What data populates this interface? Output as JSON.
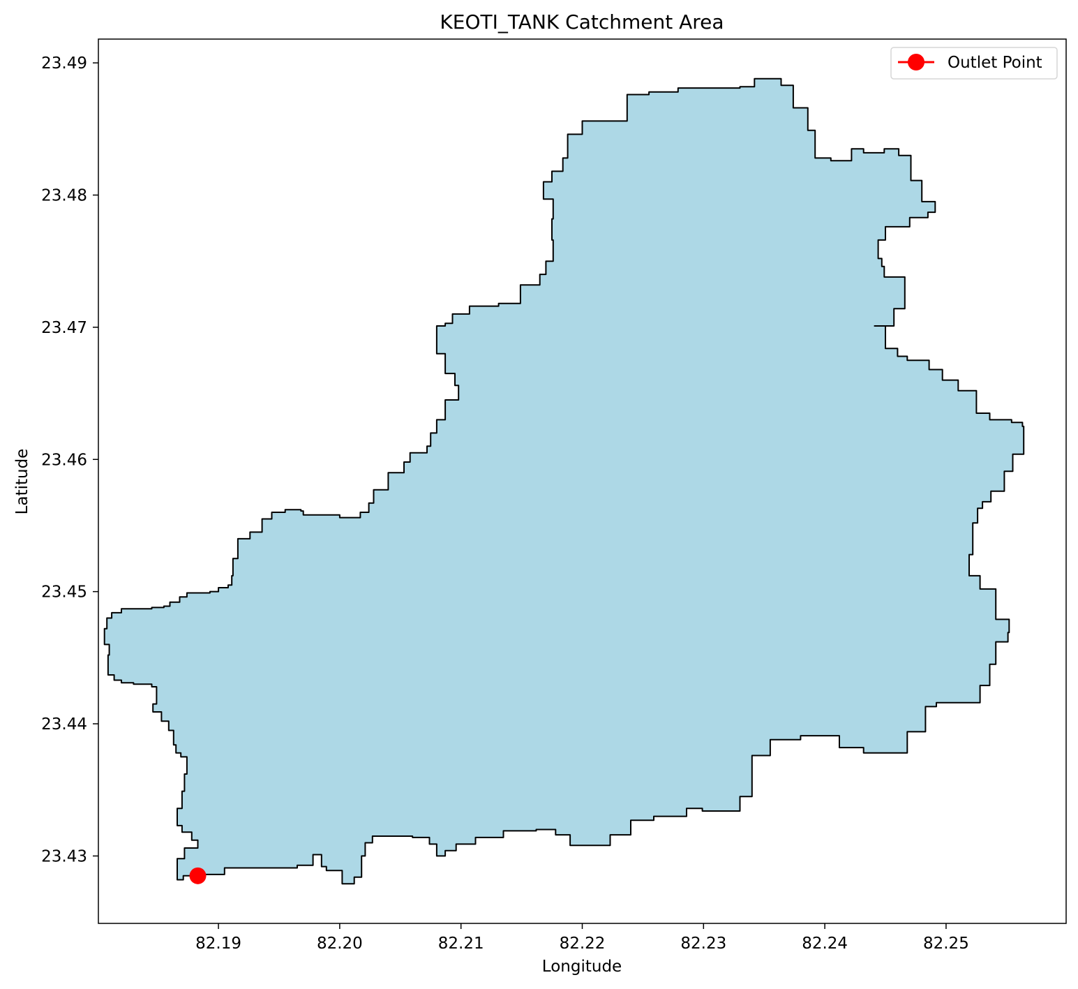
{
  "chart_data": {
    "type": "map",
    "title": "KEOTI_TANK Catchment Area",
    "xlabel": "Longitude",
    "ylabel": "Latitude",
    "xlim": [
      82.1801,
      82.2599
    ],
    "ylim": [
      23.4249,
      23.4918
    ],
    "xticks": [
      82.19,
      82.2,
      82.21,
      82.22,
      82.23,
      82.24,
      82.25
    ],
    "xtick_labels": [
      "82.19",
      "82.20",
      "82.21",
      "82.22",
      "82.23",
      "82.24",
      "82.25"
    ],
    "yticks": [
      23.43,
      23.44,
      23.45,
      23.46,
      23.47,
      23.48,
      23.49
    ],
    "ytick_labels": [
      "23.43",
      "23.44",
      "23.45",
      "23.46",
      "23.47",
      "23.48",
      "23.49"
    ],
    "grid": false,
    "legend": {
      "position": "top-right",
      "entries": [
        "Outlet Point"
      ]
    },
    "catchment": {
      "fill": "#add8e6",
      "edge": "#000000",
      "boundary": [
        [
          82.1883,
          23.4285
        ],
        [
          82.1905,
          23.4286
        ],
        [
          82.1965,
          23.4291
        ],
        [
          82.1978,
          23.4293
        ],
        [
          82.1985,
          23.4301
        ],
        [
          82.1989,
          23.4292
        ],
        [
          82.2002,
          23.4289
        ],
        [
          82.2012,
          23.4279
        ],
        [
          82.2018,
          23.4284
        ],
        [
          82.2021,
          23.43
        ],
        [
          82.2027,
          23.431
        ],
        [
          82.2032,
          23.4315
        ],
        [
          82.206,
          23.4315
        ],
        [
          82.2074,
          23.4314
        ],
        [
          82.208,
          23.4309
        ],
        [
          82.2087,
          23.43
        ],
        [
          82.2096,
          23.4304
        ],
        [
          82.2112,
          23.4309
        ],
        [
          82.2135,
          23.4314
        ],
        [
          82.2162,
          23.4319
        ],
        [
          82.2178,
          23.432
        ],
        [
          82.219,
          23.4316
        ],
        [
          82.2195,
          23.4308
        ],
        [
          82.2223,
          23.4308
        ],
        [
          82.224,
          23.4316
        ],
        [
          82.2259,
          23.4327
        ],
        [
          82.2286,
          23.433
        ],
        [
          82.2299,
          23.4336
        ],
        [
          82.233,
          23.4334
        ],
        [
          82.234,
          23.4345
        ],
        [
          82.2355,
          23.4376
        ],
        [
          82.238,
          23.4388
        ],
        [
          82.2412,
          23.4391
        ],
        [
          82.2432,
          23.4382
        ],
        [
          82.2468,
          23.4378
        ],
        [
          82.2483,
          23.4394
        ],
        [
          82.2492,
          23.4413
        ],
        [
          82.2512,
          23.4416
        ],
        [
          82.2528,
          23.4416
        ],
        [
          82.2536,
          23.4429
        ],
        [
          82.2541,
          23.4445
        ],
        [
          82.2551,
          23.4462
        ],
        [
          82.2552,
          23.4469
        ],
        [
          82.2541,
          23.4479
        ],
        [
          82.2528,
          23.4502
        ],
        [
          82.2519,
          23.4512
        ],
        [
          82.2522,
          23.4528
        ],
        [
          82.2526,
          23.4552
        ],
        [
          82.253,
          23.4563
        ],
        [
          82.2537,
          23.4568
        ],
        [
          82.2548,
          23.4576
        ],
        [
          82.2555,
          23.4591
        ],
        [
          82.2564,
          23.4604
        ],
        [
          82.2563,
          23.4625
        ],
        [
          82.2554,
          23.4628
        ],
        [
          82.2536,
          23.463
        ],
        [
          82.2525,
          23.4635
        ],
        [
          82.251,
          23.4652
        ],
        [
          82.2497,
          23.466
        ],
        [
          82.2486,
          23.4668
        ],
        [
          82.2468,
          23.4675
        ],
        [
          82.246,
          23.4678
        ],
        [
          82.245,
          23.4684
        ],
        [
          82.2441,
          23.4701
        ],
        [
          82.2457,
          23.4701
        ],
        [
          82.2466,
          23.4714
        ],
        [
          82.2466,
          23.4731
        ],
        [
          82.2449,
          23.4738
        ],
        [
          82.2447,
          23.4746
        ],
        [
          82.2444,
          23.4752
        ],
        [
          82.245,
          23.4766
        ],
        [
          82.247,
          23.4776
        ],
        [
          82.2485,
          23.4783
        ],
        [
          82.2491,
          23.4787
        ],
        [
          82.248,
          23.4795
        ],
        [
          82.2471,
          23.4811
        ],
        [
          82.2461,
          23.483
        ],
        [
          82.2449,
          23.4835
        ],
        [
          82.2432,
          23.4832
        ],
        [
          82.2422,
          23.4835
        ],
        [
          82.2405,
          23.4826
        ],
        [
          82.2392,
          23.4828
        ],
        [
          82.2386,
          23.4849
        ],
        [
          82.2374,
          23.4866
        ],
        [
          82.2364,
          23.4883
        ],
        [
          82.2342,
          23.4888
        ],
        [
          82.233,
          23.4882
        ],
        [
          82.2299,
          23.4881
        ],
        [
          82.2279,
          23.4881
        ],
        [
          82.2255,
          23.4878
        ],
        [
          82.2237,
          23.4876
        ],
        [
          82.223,
          23.4856
        ],
        [
          82.22,
          23.4856
        ],
        [
          82.2188,
          23.4846
        ],
        [
          82.2184,
          23.4828
        ],
        [
          82.2175,
          23.4818
        ],
        [
          82.2168,
          23.481
        ],
        [
          82.2176,
          23.4797
        ],
        [
          82.2175,
          23.4782
        ],
        [
          82.2176,
          23.4766
        ],
        [
          82.217,
          23.475
        ],
        [
          82.2165,
          23.474
        ],
        [
          82.2149,
          23.4732
        ],
        [
          82.214,
          23.4718
        ],
        [
          82.2131,
          23.4718
        ],
        [
          82.2107,
          23.4716
        ],
        [
          82.2093,
          23.471
        ],
        [
          82.2087,
          23.4703
        ],
        [
          82.208,
          23.4701
        ],
        [
          82.2087,
          23.468
        ],
        [
          82.2095,
          23.4665
        ],
        [
          82.2098,
          23.4656
        ],
        [
          82.2087,
          23.4645
        ],
        [
          82.208,
          23.463
        ],
        [
          82.2075,
          23.462
        ],
        [
          82.2072,
          23.461
        ],
        [
          82.2058,
          23.4605
        ],
        [
          82.2053,
          23.4598
        ],
        [
          82.204,
          23.459
        ],
        [
          82.2028,
          23.4577
        ],
        [
          82.2024,
          23.4567
        ],
        [
          82.2017,
          23.456
        ],
        [
          82.2,
          23.4556
        ],
        [
          82.197,
          23.4558
        ],
        [
          82.1968,
          23.4561
        ],
        [
          82.1955,
          23.4562
        ],
        [
          82.1944,
          23.456
        ],
        [
          82.1936,
          23.4555
        ],
        [
          82.1926,
          23.4545
        ],
        [
          82.1916,
          23.454
        ],
        [
          82.1912,
          23.4525
        ],
        [
          82.1911,
          23.4512
        ],
        [
          82.1908,
          23.4505
        ],
        [
          82.19,
          23.4503
        ],
        [
          82.1893,
          23.45
        ],
        [
          82.1874,
          23.4499
        ],
        [
          82.1868,
          23.4496
        ],
        [
          82.186,
          23.4492
        ],
        [
          82.1855,
          23.4489
        ],
        [
          82.1845,
          23.4488
        ],
        [
          82.182,
          23.4487
        ],
        [
          82.1812,
          23.4484
        ],
        [
          82.1808,
          23.448
        ],
        [
          82.1806,
          23.4472
        ],
        [
          82.181,
          23.446
        ],
        [
          82.1809,
          23.4452
        ],
        [
          82.1814,
          23.4437
        ],
        [
          82.182,
          23.4433
        ],
        [
          82.183,
          23.4431
        ],
        [
          82.1835,
          23.443
        ],
        [
          82.1845,
          23.443
        ],
        [
          82.1849,
          23.4428
        ],
        [
          82.1846,
          23.4415
        ],
        [
          82.1853,
          23.4409
        ],
        [
          82.1859,
          23.4402
        ],
        [
          82.1863,
          23.4395
        ],
        [
          82.1865,
          23.4384
        ],
        [
          82.1869,
          23.4378
        ],
        [
          82.1874,
          23.4375
        ],
        [
          82.1872,
          23.4362
        ],
        [
          82.187,
          23.4349
        ],
        [
          82.1866,
          23.4336
        ],
        [
          82.187,
          23.4323
        ],
        [
          82.1878,
          23.4318
        ],
        [
          82.1883,
          23.4312
        ],
        [
          82.1872,
          23.4306
        ],
        [
          82.1866,
          23.4298
        ],
        [
          82.1866,
          23.429
        ],
        [
          82.1871,
          23.4282
        ],
        [
          82.1883,
          23.4285
        ]
      ]
    },
    "outlet_point": {
      "name": "Outlet Point",
      "lon": 82.1883,
      "lat": 23.4285,
      "color": "#ff0000"
    }
  }
}
